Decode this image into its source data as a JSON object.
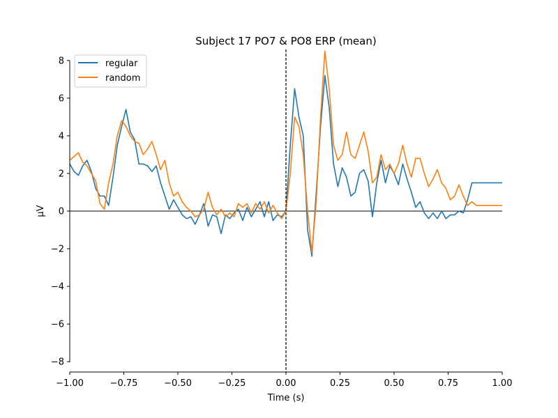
{
  "chart_data": {
    "type": "line",
    "title": "Subject 17 PO7 & PO8 ERP (mean)",
    "xlabel": "Time (s)",
    "ylabel": "µV",
    "xlim": [
      -1.0,
      1.0
    ],
    "ylim": [
      -8.4,
      8.4
    ],
    "xticks": [
      -1.0,
      -0.75,
      -0.5,
      -0.25,
      0.0,
      0.25,
      0.5,
      0.75,
      1.0
    ],
    "xtick_labels": [
      "−1.00",
      "−0.75",
      "−0.50",
      "−0.25",
      "0.00",
      "0.25",
      "0.50",
      "0.75",
      "1.00"
    ],
    "yticks": [
      -8,
      -6,
      -4,
      -2,
      0,
      2,
      4,
      6,
      8
    ],
    "ytick_labels": [
      "−8",
      "−6",
      "−4",
      "−2",
      "0",
      "2",
      "4",
      "6",
      "8"
    ],
    "hline_y": 0,
    "vline_x": 0.0,
    "grid": false,
    "legend_position": "top-left",
    "series": [
      {
        "name": "regular",
        "color": "#1f77b4",
        "x": [
          -1.0,
          -0.98,
          -0.96,
          -0.94,
          -0.92,
          -0.9,
          -0.88,
          -0.86,
          -0.84,
          -0.82,
          -0.8,
          -0.78,
          -0.76,
          -0.74,
          -0.72,
          -0.7,
          -0.68,
          -0.66,
          -0.64,
          -0.62,
          -0.6,
          -0.58,
          -0.56,
          -0.54,
          -0.52,
          -0.5,
          -0.48,
          -0.46,
          -0.44,
          -0.42,
          -0.4,
          -0.38,
          -0.36,
          -0.34,
          -0.32,
          -0.3,
          -0.28,
          -0.26,
          -0.24,
          -0.22,
          -0.2,
          -0.18,
          -0.16,
          -0.14,
          -0.12,
          -0.1,
          -0.08,
          -0.06,
          -0.04,
          -0.02,
          0.0,
          0.02,
          0.04,
          0.06,
          0.08,
          0.1,
          0.12,
          0.14,
          0.16,
          0.18,
          0.2,
          0.22,
          0.24,
          0.26,
          0.28,
          0.3,
          0.32,
          0.34,
          0.36,
          0.38,
          0.4,
          0.42,
          0.44,
          0.46,
          0.48,
          0.5,
          0.52,
          0.54,
          0.56,
          0.58,
          0.6,
          0.62,
          0.64,
          0.66,
          0.68,
          0.7,
          0.72,
          0.74,
          0.76,
          0.78,
          0.8,
          0.82,
          0.84,
          0.86,
          0.88,
          0.9,
          0.92,
          0.94,
          0.96,
          0.98,
          1.0
        ],
        "values": [
          2.5,
          2.1,
          1.9,
          2.4,
          2.7,
          2.1,
          1.2,
          0.8,
          0.8,
          0.3,
          1.8,
          3.5,
          4.5,
          5.4,
          4.2,
          3.8,
          2.5,
          2.5,
          2.4,
          2.1,
          2.4,
          1.5,
          0.8,
          0.1,
          0.6,
          0.2,
          -0.2,
          -0.4,
          -0.3,
          -0.7,
          -0.2,
          0.4,
          -0.8,
          -0.2,
          -0.3,
          -1.2,
          -0.2,
          -0.4,
          -0.1,
          0.1,
          -0.5,
          0.2,
          -0.3,
          0.1,
          0.5,
          -0.3,
          0.5,
          -0.5,
          -0.2,
          -0.3,
          0.0,
          3.5,
          6.5,
          5.0,
          4.0,
          -1.0,
          -2.4,
          1.0,
          4.5,
          7.2,
          5.5,
          2.5,
          1.3,
          2.3,
          1.8,
          0.8,
          1.0,
          2.0,
          2.2,
          1.6,
          -0.3,
          1.5,
          2.7,
          1.5,
          2.4,
          2.0,
          1.4,
          2.5,
          1.7,
          1.0,
          0.2,
          0.5,
          -0.1,
          -0.4,
          -0.1,
          -0.4,
          0.0,
          -0.4,
          -0.2,
          -0.2,
          0.0,
          -0.1,
          0.6,
          1.5,
          1.5,
          1.5,
          1.5,
          1.5,
          1.5,
          1.5,
          1.5
        ]
      },
      {
        "name": "random",
        "color": "#ff7f0e",
        "x": [
          -1.0,
          -0.98,
          -0.96,
          -0.94,
          -0.92,
          -0.9,
          -0.88,
          -0.86,
          -0.84,
          -0.82,
          -0.8,
          -0.78,
          -0.76,
          -0.74,
          -0.72,
          -0.7,
          -0.68,
          -0.66,
          -0.64,
          -0.62,
          -0.6,
          -0.58,
          -0.56,
          -0.54,
          -0.52,
          -0.5,
          -0.48,
          -0.46,
          -0.44,
          -0.42,
          -0.4,
          -0.38,
          -0.36,
          -0.34,
          -0.32,
          -0.3,
          -0.28,
          -0.26,
          -0.24,
          -0.22,
          -0.2,
          -0.18,
          -0.16,
          -0.14,
          -0.12,
          -0.1,
          -0.08,
          -0.06,
          -0.04,
          -0.02,
          0.0,
          0.02,
          0.04,
          0.06,
          0.08,
          0.1,
          0.12,
          0.14,
          0.16,
          0.18,
          0.2,
          0.22,
          0.24,
          0.26,
          0.28,
          0.3,
          0.32,
          0.34,
          0.36,
          0.38,
          0.4,
          0.42,
          0.44,
          0.46,
          0.48,
          0.5,
          0.52,
          0.54,
          0.56,
          0.58,
          0.6,
          0.62,
          0.64,
          0.66,
          0.68,
          0.7,
          0.72,
          0.74,
          0.76,
          0.78,
          0.8,
          0.82,
          0.84,
          0.86,
          0.88,
          0.9,
          0.92,
          0.94,
          0.96,
          0.98,
          1.0
        ],
        "values": [
          2.7,
          2.9,
          3.1,
          2.6,
          2.4,
          2.0,
          1.6,
          0.4,
          0.1,
          1.5,
          2.5,
          4.0,
          4.8,
          4.5,
          4.0,
          3.7,
          3.6,
          3.0,
          3.3,
          3.7,
          3.0,
          2.2,
          2.7,
          1.5,
          0.8,
          1.0,
          0.5,
          0.2,
          0.0,
          -0.3,
          -0.2,
          0.1,
          1.0,
          0.2,
          -0.2,
          0.1,
          -0.3,
          -0.1,
          -0.3,
          0.4,
          0.2,
          0.4,
          -0.1,
          0.4,
          0.1,
          0.5,
          -0.1,
          0.3,
          -0.1,
          -0.4,
          0.0,
          2.0,
          5.0,
          4.5,
          3.0,
          0.0,
          -2.2,
          0.5,
          5.0,
          8.5,
          6.5,
          3.5,
          2.7,
          3.0,
          4.2,
          3.0,
          2.8,
          3.5,
          4.2,
          3.2,
          1.5,
          1.8,
          3.0,
          2.2,
          2.5,
          2.0,
          2.5,
          3.5,
          2.5,
          1.8,
          2.8,
          2.8,
          2.0,
          1.3,
          1.7,
          2.2,
          1.5,
          1.2,
          0.6,
          0.8,
          1.4,
          0.8,
          0.3,
          0.5,
          0.3,
          0.3,
          0.3,
          0.3,
          0.3,
          0.3,
          0.3
        ]
      }
    ]
  }
}
